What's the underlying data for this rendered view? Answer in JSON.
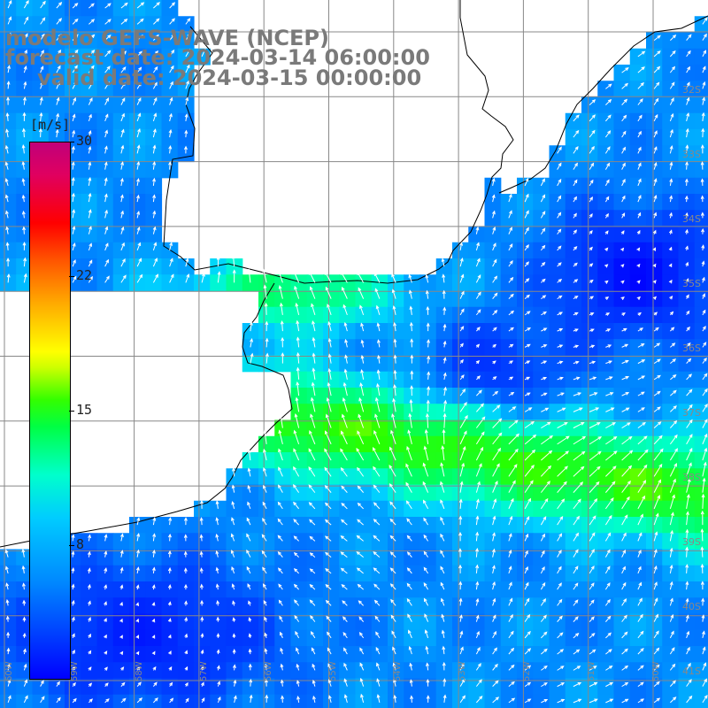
{
  "header": {
    "model_line": "modelo GEFS-WAVE (NCEP)",
    "forecast_line": "forecast date: 2024-03-14 06:00:00",
    "valid_line": "valid date: 2024-03-15 00:00:00"
  },
  "colorbar": {
    "unit": "[m/s]",
    "ticks": [
      "8",
      "15",
      "22",
      "30"
    ],
    "min": 0,
    "max": 30,
    "colors": [
      "#0000ff",
      "#0088ff",
      "#00ccff",
      "#00ffcc",
      "#00ff44",
      "#ccff00",
      "#ffff00",
      "#ff5500",
      "#ff0000",
      "#c0007a"
    ]
  },
  "lat_labels": [
    "32S",
    "33S",
    "34S",
    "35S",
    "36S",
    "37S",
    "38S",
    "39S",
    "40S",
    "41S"
  ],
  "lon_labels": [
    "60W",
    "59W",
    "58W",
    "57W",
    "56W",
    "55W",
    "54W",
    "53W",
    "52W",
    "51W",
    "50W"
  ],
  "map_style": {
    "land": "#ffffff",
    "grid": "#888888",
    "coast": "#000000",
    "arrow": "#ffffff"
  }
}
